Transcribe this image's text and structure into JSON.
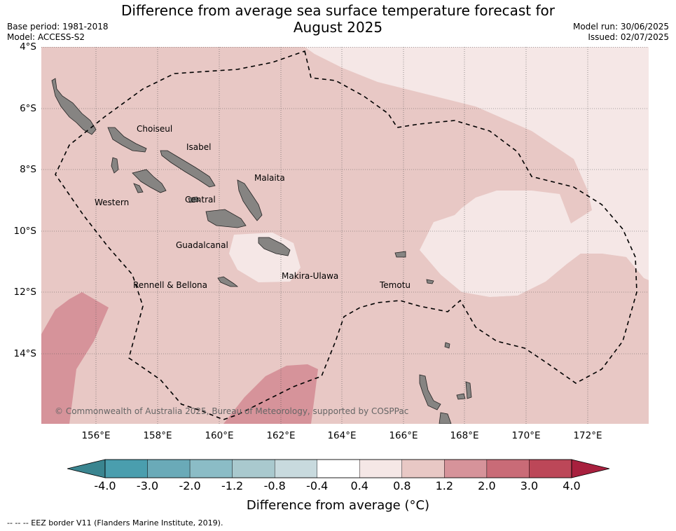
{
  "title_line1": "Difference from average sea surface temperature forecast for",
  "title_line2": "August 2025",
  "base_period": "Base period: 1981-2018",
  "model": "Model: ACCESS-S2",
  "model_run": "Model run: 30/06/2025",
  "issued": "Issued: 02/07/2025",
  "lat_labels": [
    "4°S",
    "6°S",
    "8°S",
    "10°S",
    "12°S",
    "14°S"
  ],
  "lon_labels": [
    "156°E",
    "158°E",
    "160°E",
    "162°E",
    "164°E",
    "166°E",
    "168°E",
    "170°E",
    "172°E"
  ],
  "places": {
    "choiseul": "Choiseul",
    "isabel": "Isabel",
    "malaita": "Malaita",
    "western": "Western",
    "central": "Central",
    "guadalcanal": "Guadalcanal",
    "makira": "Makira-Ulawa",
    "rennell": "Rennell & Bellona",
    "temotu": "Temotu"
  },
  "copyright": "© Commonwealth of Australia 2025, Bureau of Meteorology, supported by COSPPac",
  "colorbar": {
    "ticks": [
      "-4.0",
      "-3.0",
      "-2.0",
      "-1.2",
      "-0.8",
      "-0.4",
      "0.4",
      "0.8",
      "1.2",
      "2.0",
      "3.0",
      "4.0"
    ],
    "colors": [
      "#4a9eae",
      "#6aaab8",
      "#8bbcc6",
      "#a9c9ce",
      "#c8dade",
      "#ffffff",
      "#f5e7e6",
      "#e8c8c5",
      "#d6939a",
      "#c96b77",
      "#bc4758"
    ],
    "extend_low": "#3a8590",
    "extend_high": "#a8203e",
    "label": "Difference from average (°C)"
  },
  "footnote": "--  --  -- EEZ border V11 (Flanders Marine Institute, 2019).",
  "legend_colors": {
    "land": "#868482",
    "sea_base": "#e8c8c5",
    "sea_light": "#f5e7e6",
    "sea_warm": "#d6939a",
    "eez": "#000000"
  }
}
